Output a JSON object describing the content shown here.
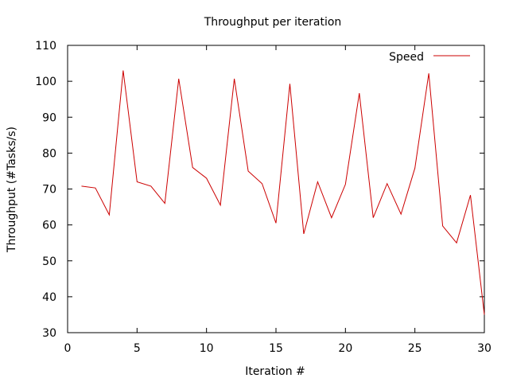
{
  "chart_data": {
    "type": "line",
    "title": "Throughput per iteration",
    "xlabel": "Iteration #",
    "ylabel": "Throughput (#Tasks/s)",
    "xlim": [
      0,
      30
    ],
    "ylim": [
      30,
      110
    ],
    "xticks": [
      0,
      5,
      10,
      15,
      20,
      25,
      30
    ],
    "yticks": [
      30,
      40,
      50,
      60,
      70,
      80,
      90,
      100,
      110
    ],
    "grid": false,
    "legend_position": "top-right",
    "series": [
      {
        "name": "Speed",
        "color": "#cc0000",
        "x": [
          1,
          2,
          3,
          4,
          5,
          6,
          7,
          8,
          9,
          10,
          11,
          12,
          13,
          14,
          15,
          16,
          17,
          18,
          19,
          20,
          21,
          22,
          23,
          24,
          25,
          26,
          27,
          28,
          29,
          30
        ],
        "y": [
          70.8,
          70.3,
          62.8,
          103.0,
          72.0,
          70.8,
          66.0,
          100.7,
          76.0,
          73.0,
          65.5,
          100.7,
          75.0,
          71.5,
          60.5,
          99.3,
          57.5,
          72.0,
          62.0,
          71.3,
          96.7,
          62.0,
          71.5,
          63.0,
          75.8,
          102.2,
          59.7,
          55.0,
          68.3,
          35.0
        ]
      }
    ]
  }
}
